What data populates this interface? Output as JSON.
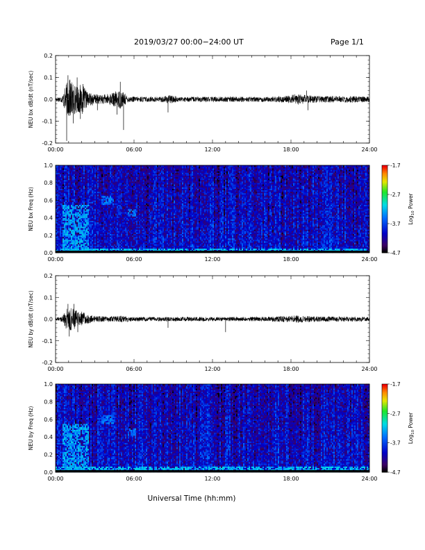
{
  "header": {
    "title": "2019/03/27  00:00−24:00 UT",
    "page": "Page 1/1"
  },
  "x_axis_label": "Universal Time (hh:mm)",
  "time_ticks": [
    "00:00",
    "06:00",
    "12:00",
    "18:00",
    "24:00"
  ],
  "chart_data": [
    {
      "type": "line",
      "id": "bx-dbdt",
      "ylabel": "NEU bx dB/dt (nT/sec)",
      "ylim": [
        -0.2,
        0.2
      ],
      "yticks": [
        "-0.2",
        "-0.1",
        "0.0",
        "0.1",
        "0.2"
      ],
      "xlim_hours": [
        0,
        24
      ],
      "xlabel": "",
      "envelope": {
        "x_hours": [
          0.0,
          0.5,
          0.8,
          1.0,
          1.3,
          1.6,
          2.0,
          2.5,
          3.0,
          3.5,
          4.0,
          4.6,
          5.0,
          5.5,
          6.0,
          7.0,
          8.0,
          8.8,
          9.5,
          10.5,
          12.0,
          13.0,
          14.0,
          15.5,
          16.5,
          17.5,
          18.0,
          18.5,
          19.0,
          20.0,
          21.0,
          22.0,
          23.0,
          24.0
        ],
        "amp": [
          0.01,
          0.015,
          0.07,
          0.09,
          0.08,
          0.06,
          0.07,
          0.03,
          0.025,
          0.02,
          0.025,
          0.035,
          0.045,
          0.015,
          0.012,
          0.012,
          0.012,
          0.02,
          0.01,
          0.012,
          0.012,
          0.012,
          0.012,
          0.012,
          0.012,
          0.015,
          0.02,
          0.025,
          0.02,
          0.015,
          0.015,
          0.015,
          0.015,
          0.012
        ]
      },
      "spikes": [
        {
          "t": 0.85,
          "v": -0.19
        },
        {
          "t": 0.95,
          "v": 0.11
        },
        {
          "t": 1.1,
          "v": 0.09
        },
        {
          "t": 1.35,
          "v": -0.11
        },
        {
          "t": 1.65,
          "v": 0.1
        },
        {
          "t": 1.9,
          "v": -0.09
        },
        {
          "t": 2.1,
          "v": 0.07
        },
        {
          "t": 3.2,
          "v": -0.05
        },
        {
          "t": 4.7,
          "v": -0.07
        },
        {
          "t": 4.95,
          "v": 0.08
        },
        {
          "t": 5.2,
          "v": -0.14
        },
        {
          "t": 8.6,
          "v": -0.06
        },
        {
          "t": 19.2,
          "v": 0.04
        },
        {
          "t": 19.3,
          "v": -0.05
        }
      ]
    },
    {
      "type": "heatmap",
      "id": "bx-freq",
      "ylabel": "NEU bx Freq (Hz)",
      "ylim": [
        0.0,
        1.0
      ],
      "yticks": [
        "0.0",
        "0.2",
        "0.4",
        "0.6",
        "0.8",
        "1.0"
      ],
      "xlim_hours": [
        0,
        24
      ],
      "colorbar": {
        "label": "Log10 Power",
        "label_base": "Log",
        "label_sub": "10",
        "label_rest": " Power",
        "min": -4.7,
        "max": -1.7,
        "ticks": [
          "-1.7",
          "-2.7",
          "-3.7",
          "-4.7"
        ]
      },
      "features": [
        {
          "t0": 0,
          "t1": 24,
          "f0": 0,
          "f1": 0.05,
          "level": -3.2
        },
        {
          "t0": 0.5,
          "t1": 2.5,
          "f0": 0,
          "f1": 0.55,
          "level": -3.3
        },
        {
          "t0": 3.5,
          "t1": 4.5,
          "f0": 0.55,
          "f1": 0.65,
          "level": -3.5
        },
        {
          "t0": 5.5,
          "t1": 6.2,
          "f0": 0.42,
          "f1": 0.5,
          "level": -3.5
        }
      ],
      "background_level": -4.0
    },
    {
      "type": "line",
      "id": "by-dbdt",
      "ylabel": "NEU by dB/dt (nT/sec)",
      "ylim": [
        -0.2,
        0.2
      ],
      "yticks": [
        "-0.2",
        "-0.1",
        "0.0",
        "0.1",
        "0.2"
      ],
      "xlim_hours": [
        0,
        24
      ],
      "xlabel": "",
      "envelope": {
        "x_hours": [
          0.0,
          0.5,
          0.8,
          1.0,
          1.3,
          1.6,
          2.0,
          2.5,
          3.0,
          4.0,
          5.0,
          6.0,
          8.0,
          10.0,
          12.0,
          14.0,
          16.0,
          18.0,
          18.5,
          19.0,
          20.0,
          22.0,
          24.0
        ],
        "amp": [
          0.008,
          0.012,
          0.045,
          0.06,
          0.05,
          0.04,
          0.035,
          0.02,
          0.015,
          0.012,
          0.015,
          0.01,
          0.01,
          0.01,
          0.01,
          0.01,
          0.01,
          0.015,
          0.018,
          0.015,
          0.012,
          0.012,
          0.01
        ]
      },
      "spikes": [
        {
          "t": 0.95,
          "v": 0.07
        },
        {
          "t": 1.05,
          "v": -0.08
        },
        {
          "t": 1.4,
          "v": 0.07
        },
        {
          "t": 1.7,
          "v": -0.06
        },
        {
          "t": 8.6,
          "v": -0.04
        },
        {
          "t": 13.0,
          "v": -0.06
        }
      ]
    },
    {
      "type": "heatmap",
      "id": "by-freq",
      "ylabel": "NEU by Freq (Hz)",
      "ylim": [
        0.0,
        1.0
      ],
      "yticks": [
        "0.0",
        "0.2",
        "0.4",
        "0.6",
        "0.8",
        "1.0"
      ],
      "xlim_hours": [
        0,
        24
      ],
      "colorbar": {
        "label": "Log10 Power",
        "label_base": "Log",
        "label_sub": "10",
        "label_rest": " Power",
        "min": -4.7,
        "max": -1.7,
        "ticks": [
          "-1.7",
          "-2.7",
          "-3.7",
          "-4.7"
        ]
      },
      "features": [
        {
          "t0": 0,
          "t1": 24,
          "f0": 0,
          "f1": 0.06,
          "level": -3.2
        },
        {
          "t0": 0.5,
          "t1": 2.5,
          "f0": 0,
          "f1": 0.55,
          "level": -3.3
        },
        {
          "t0": 3.5,
          "t1": 4.5,
          "f0": 0.55,
          "f1": 0.65,
          "level": -3.5
        },
        {
          "t0": 5.5,
          "t1": 6.2,
          "f0": 0.42,
          "f1": 0.5,
          "level": -3.5
        }
      ],
      "background_level": -4.0
    }
  ]
}
